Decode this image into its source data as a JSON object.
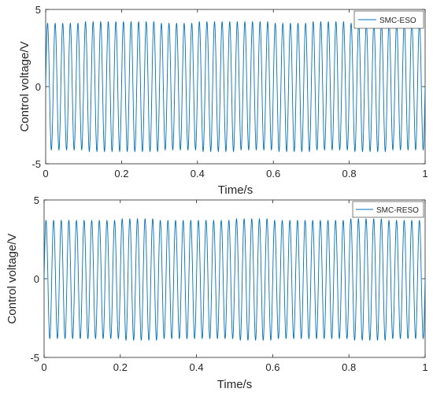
{
  "chart_data": [
    {
      "type": "line",
      "title": "",
      "xlabel": "Time/s",
      "ylabel": "Control voltage/V",
      "xlim": [
        0,
        1
      ],
      "ylim": [
        -5,
        5
      ],
      "xticks": [
        "0",
        "0.2",
        "0.4",
        "0.6",
        "0.8",
        "1"
      ],
      "yticks": [
        "5",
        "0",
        "-5"
      ],
      "grid": false,
      "legend_position": "top-right",
      "series": [
        {
          "name": "SMC-ESO",
          "color": "#0072BD",
          "waveform": "sine",
          "frequency_hz": 50,
          "amplitude": 4.15,
          "x": [
            0,
            0.1,
            0.2,
            0.3,
            0.4,
            0.5,
            0.6,
            0.7,
            0.8,
            0.9,
            1.0
          ],
          "y": [
            0,
            0,
            0,
            0,
            0,
            0,
            0,
            0,
            0,
            0,
            0
          ],
          "peaks": [
            4.1,
            4.2,
            4.2,
            4.1,
            4.2,
            4.2,
            4.1,
            4.2,
            4.1,
            4.2
          ],
          "troughs": [
            -4.1,
            -4.2,
            -4.2,
            -4.1,
            -4.2,
            -4.1,
            -4.2,
            -4.1,
            -4.2,
            -4.1
          ]
        }
      ]
    },
    {
      "type": "line",
      "title": "",
      "xlabel": "Time/s",
      "ylabel": "Control voltage/V",
      "xlim": [
        0,
        1
      ],
      "ylim": [
        -5,
        5
      ],
      "xticks": [
        "0",
        "0.2",
        "0.4",
        "0.6",
        "0.8",
        "1"
      ],
      "yticks": [
        "5",
        "0",
        "-5"
      ],
      "grid": false,
      "legend_position": "top-right",
      "series": [
        {
          "name": "SMC-RESO",
          "color": "#0072BD",
          "waveform": "sine",
          "frequency_hz": 50,
          "amplitude": 3.75,
          "x": [
            0,
            0.1,
            0.2,
            0.3,
            0.4,
            0.5,
            0.6,
            0.7,
            0.8,
            0.9,
            1.0
          ],
          "y": [
            0,
            0,
            0,
            0,
            0,
            0,
            0,
            0,
            0,
            0,
            0
          ],
          "peaks": [
            3.7,
            3.7,
            3.8,
            3.7,
            3.7,
            3.8,
            3.7,
            3.7,
            3.8,
            3.7
          ],
          "troughs": [
            -3.8,
            -3.8,
            -3.9,
            -3.8,
            -3.8,
            -3.9,
            -3.8,
            -3.8,
            -3.9,
            -3.8
          ]
        }
      ]
    }
  ]
}
